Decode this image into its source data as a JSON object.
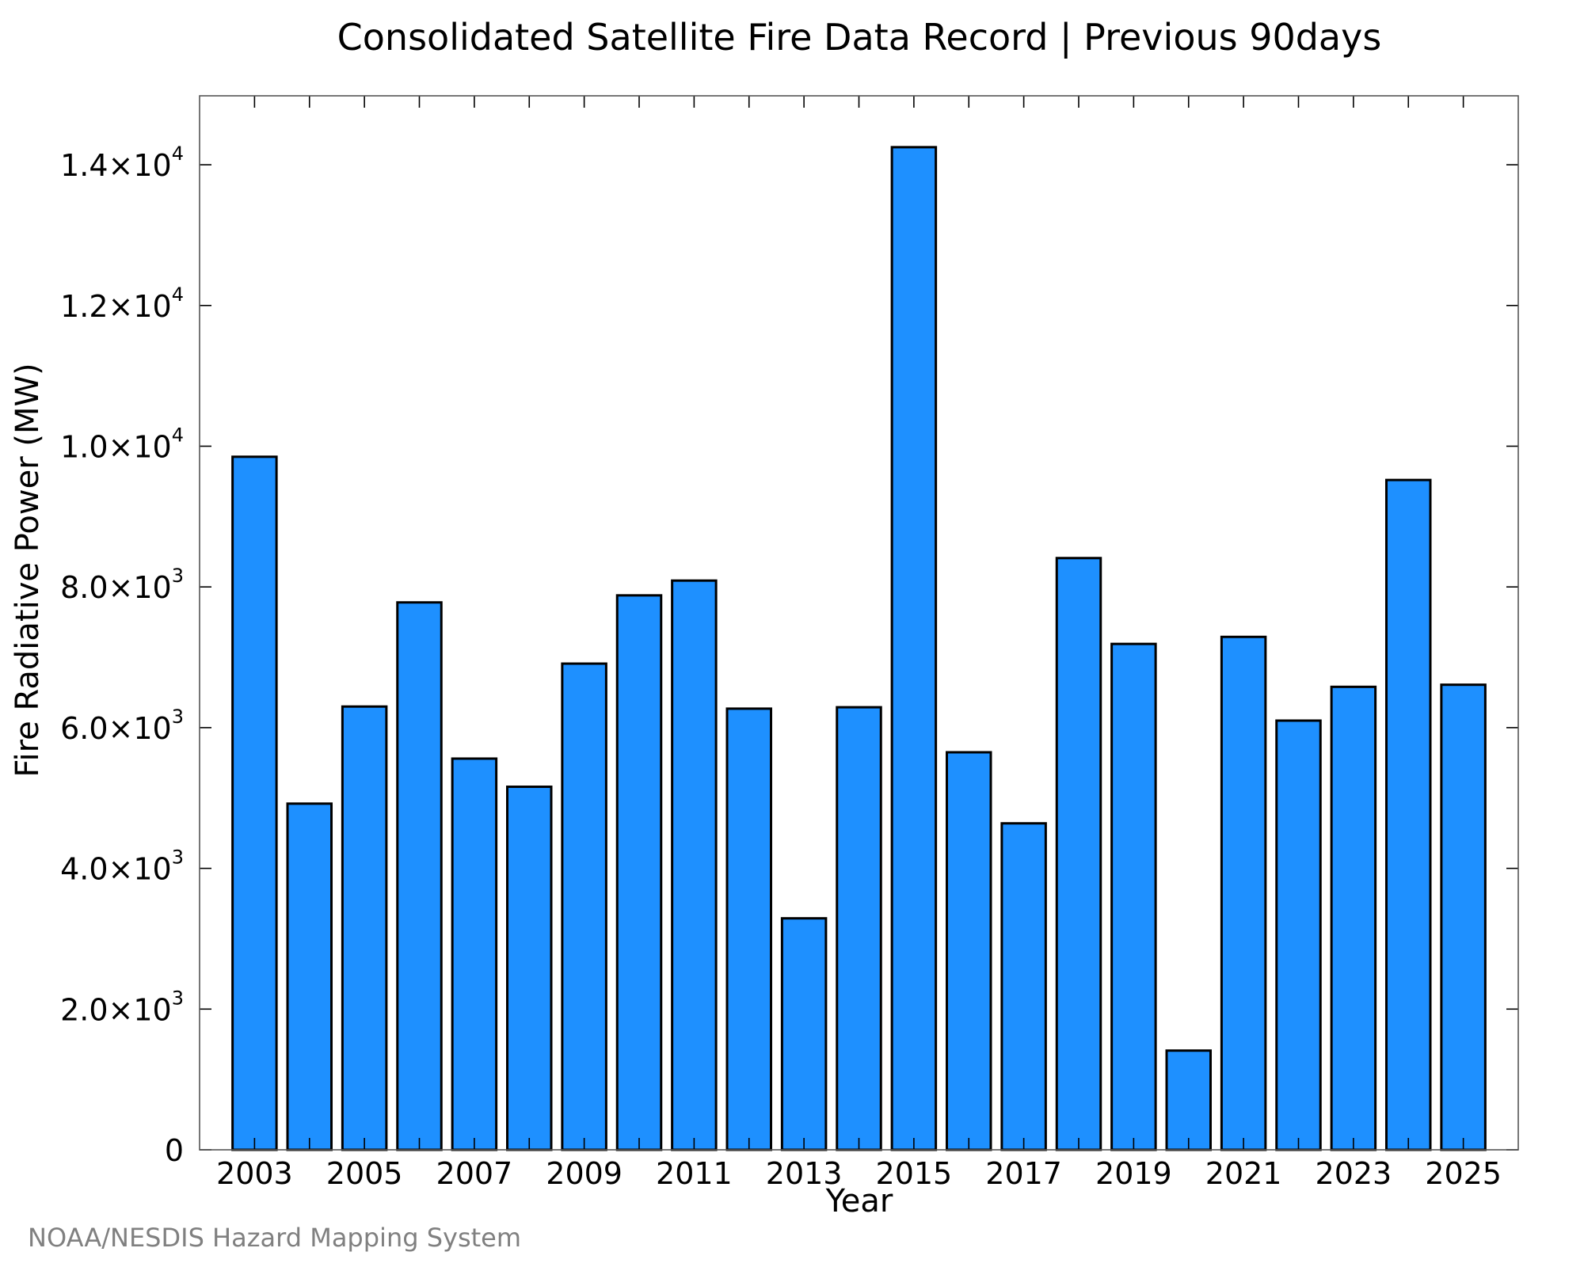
{
  "chart_data": {
    "type": "bar",
    "title": "Consolidated Satellite Fire Data Record | Previous 90days",
    "xlabel": "Year",
    "ylabel": "Fire Radiative Power (MW)",
    "categories": [
      2003,
      2004,
      2005,
      2006,
      2007,
      2008,
      2009,
      2010,
      2011,
      2012,
      2013,
      2014,
      2015,
      2016,
      2017,
      2018,
      2019,
      2020,
      2021,
      2022,
      2023,
      2024,
      2025
    ],
    "values": [
      9850,
      4920,
      6300,
      7780,
      5560,
      5160,
      6910,
      7880,
      8090,
      6270,
      3290,
      6290,
      14250,
      5650,
      4640,
      8410,
      7190,
      1410,
      7290,
      6100,
      6580,
      9520,
      6610
    ],
    "x_tick_labels": [
      "2003",
      "2005",
      "2007",
      "2009",
      "2011",
      "2013",
      "2015",
      "2017",
      "2019",
      "2021",
      "2023",
      "2025"
    ],
    "x_ticks": [
      2003,
      2004,
      2005,
      2006,
      2007,
      2008,
      2009,
      2010,
      2011,
      2012,
      2013,
      2014,
      2015,
      2016,
      2017,
      2018,
      2019,
      2020,
      2021,
      2022,
      2023,
      2024,
      2025
    ],
    "y_ticks": [
      {
        "value": 0,
        "mantissa": "0",
        "exponent": ""
      },
      {
        "value": 2000,
        "mantissa": "2.0×10",
        "exponent": "3"
      },
      {
        "value": 4000,
        "mantissa": "4.0×10",
        "exponent": "3"
      },
      {
        "value": 6000,
        "mantissa": "6.0×10",
        "exponent": "3"
      },
      {
        "value": 8000,
        "mantissa": "8.0×10",
        "exponent": "3"
      },
      {
        "value": 10000,
        "mantissa": "1.0×10",
        "exponent": "4"
      },
      {
        "value": 12000,
        "mantissa": "1.2×10",
        "exponent": "4"
      },
      {
        "value": 14000,
        "mantissa": "1.4×10",
        "exponent": "4"
      }
    ],
    "xlim": [
      2002,
      2026
    ],
    "ylim": [
      0,
      14980
    ],
    "grid": false,
    "legend": "none",
    "bar_color": "#1E90FF",
    "bar_edge_color": "#000000"
  },
  "footer": {
    "credit": "NOAA/NESDIS Hazard Mapping System",
    "credit_color": "#808080"
  }
}
